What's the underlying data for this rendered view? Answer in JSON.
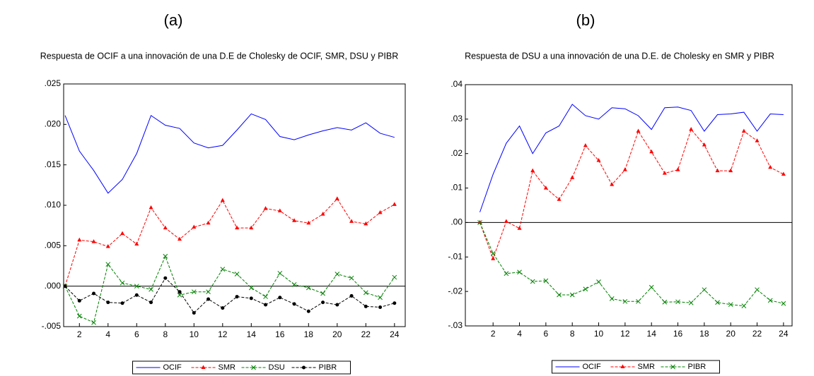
{
  "chart_data": [
    {
      "type": "line",
      "panel_label": "(a)",
      "title": "Respuesta de OCIF a una innovación de una D.E de Cholesky de OCIF, SMR, DSU y PIBR",
      "x": [
        1,
        2,
        3,
        4,
        5,
        6,
        7,
        8,
        9,
        10,
        11,
        12,
        13,
        14,
        15,
        16,
        17,
        18,
        19,
        20,
        21,
        22,
        23,
        24
      ],
      "xlim": [
        0.9,
        24.75
      ],
      "xticks": [
        2,
        4,
        6,
        8,
        10,
        12,
        14,
        16,
        18,
        20,
        22,
        24
      ],
      "ylim": [
        -0.005,
        0.025
      ],
      "yticks": [
        {
          "value": -0.005,
          "label": "-.005"
        },
        {
          "value": 0,
          "label": ".000"
        },
        {
          "value": 0.005,
          "label": ".005"
        },
        {
          "value": 0.01,
          "label": ".010"
        },
        {
          "value": 0.015,
          "label": ".015"
        },
        {
          "value": 0.02,
          "label": ".020"
        },
        {
          "value": 0.025,
          "label": ".025"
        }
      ],
      "zero_line": true,
      "legend": "bottom",
      "series": [
        {
          "name": "OCIF",
          "color": "#0000ff",
          "dashed": false,
          "marker": "none",
          "values": [
            0.0211,
            0.0167,
            0.0143,
            0.0115,
            0.0132,
            0.0164,
            0.0211,
            0.0199,
            0.0195,
            0.0177,
            0.0171,
            0.0174,
            0.0193,
            0.0213,
            0.0206,
            0.0185,
            0.0181,
            0.0187,
            0.0192,
            0.0196,
            0.0193,
            0.0202,
            0.0189,
            0.0184
          ]
        },
        {
          "name": "SMR",
          "color": "#ff0000",
          "dashed": true,
          "marker": "triangle",
          "values": [
            0,
            0.0057,
            0.0055,
            0.0049,
            0.0065,
            0.0052,
            0.0097,
            0.0072,
            0.0058,
            0.0073,
            0.0078,
            0.0106,
            0.0072,
            0.0072,
            0.0096,
            0.0093,
            0.0081,
            0.0078,
            0.0089,
            0.0108,
            0.008,
            0.0077,
            0.0091,
            0.0101
          ]
        },
        {
          "name": "DSU",
          "color": "#008000",
          "dashed": true,
          "marker": "cross",
          "values": [
            0,
            -0.0037,
            -0.0045,
            0.0027,
            0.0004,
            0,
            -0.0004,
            0.0037,
            -0.0011,
            -0.0007,
            -0.0007,
            0.0021,
            0.0015,
            -0.0002,
            -0.0013,
            0.0016,
            0.0002,
            -0.0002,
            -0.0009,
            0.0015,
            0.001,
            -0.0008,
            -0.0014,
            0.0011
          ]
        },
        {
          "name": "PIBR",
          "color": "#000000",
          "dashed": true,
          "marker": "dot",
          "values": [
            0,
            -0.0018,
            -0.0009,
            -0.002,
            -0.0021,
            -0.0011,
            -0.002,
            0.001,
            -0.0007,
            -0.0033,
            -0.0016,
            -0.0027,
            -0.0013,
            -0.0015,
            -0.0023,
            -0.0014,
            -0.0022,
            -0.0031,
            -0.002,
            -0.0023,
            -0.0012,
            -0.0025,
            -0.0026,
            -0.0021
          ]
        }
      ]
    },
    {
      "type": "line",
      "panel_label": "(b)",
      "title": "Respuesta de DSU a una innovación de una D.E. de Cholesky en SMR y PIBR",
      "x": [
        1,
        2,
        3,
        4,
        5,
        6,
        7,
        8,
        9,
        10,
        11,
        12,
        13,
        14,
        15,
        16,
        17,
        18,
        19,
        20,
        21,
        22,
        23,
        24
      ],
      "xlim": [
        -0.1,
        24.65
      ],
      "xticks": [
        2,
        4,
        6,
        8,
        10,
        12,
        14,
        16,
        18,
        20,
        22,
        24
      ],
      "ylim": [
        -0.03,
        0.04
      ],
      "yticks": [
        {
          "value": -0.03,
          "label": "-.03"
        },
        {
          "value": -0.02,
          "label": "-.02"
        },
        {
          "value": -0.01,
          "label": "-.01"
        },
        {
          "value": 0,
          "label": ".00"
        },
        {
          "value": 0.01,
          "label": ".01"
        },
        {
          "value": 0.02,
          "label": ".02"
        },
        {
          "value": 0.03,
          "label": ".03"
        },
        {
          "value": 0.04,
          "label": ".04"
        }
      ],
      "zero_line": true,
      "legend": "bottom",
      "series": [
        {
          "name": "OCIF",
          "color": "#0000ff",
          "dashed": false,
          "marker": "none",
          "values": [
            0.003,
            0.014,
            0.023,
            0.028,
            0.02,
            0.026,
            0.028,
            0.0343,
            0.031,
            0.03,
            0.0333,
            0.033,
            0.031,
            0.027,
            0.0333,
            0.0335,
            0.0325,
            0.0265,
            0.0313,
            0.0315,
            0.032,
            0.0265,
            0.0315,
            0.0313
          ]
        },
        {
          "name": "SMR",
          "color": "#ff0000",
          "dashed": true,
          "marker": "triangle",
          "values": [
            0,
            -0.0105,
            0.0003,
            -0.0017,
            0.015,
            0.01,
            0.0067,
            0.013,
            0.0223,
            0.018,
            0.011,
            0.0153,
            0.0265,
            0.0205,
            0.0143,
            0.0153,
            0.027,
            0.0225,
            0.015,
            0.015,
            0.0265,
            0.0237,
            0.016,
            0.014
          ]
        },
        {
          "name": "PIBR",
          "color": "#008000",
          "dashed": true,
          "marker": "cross",
          "values": [
            0,
            -0.009,
            -0.0148,
            -0.0144,
            -0.0171,
            -0.0169,
            -0.021,
            -0.021,
            -0.0193,
            -0.0172,
            -0.0221,
            -0.0229,
            -0.0229,
            -0.0188,
            -0.0231,
            -0.023,
            -0.0233,
            -0.0195,
            -0.0232,
            -0.0238,
            -0.0242,
            -0.0195,
            -0.0226,
            -0.0235
          ]
        }
      ]
    }
  ]
}
